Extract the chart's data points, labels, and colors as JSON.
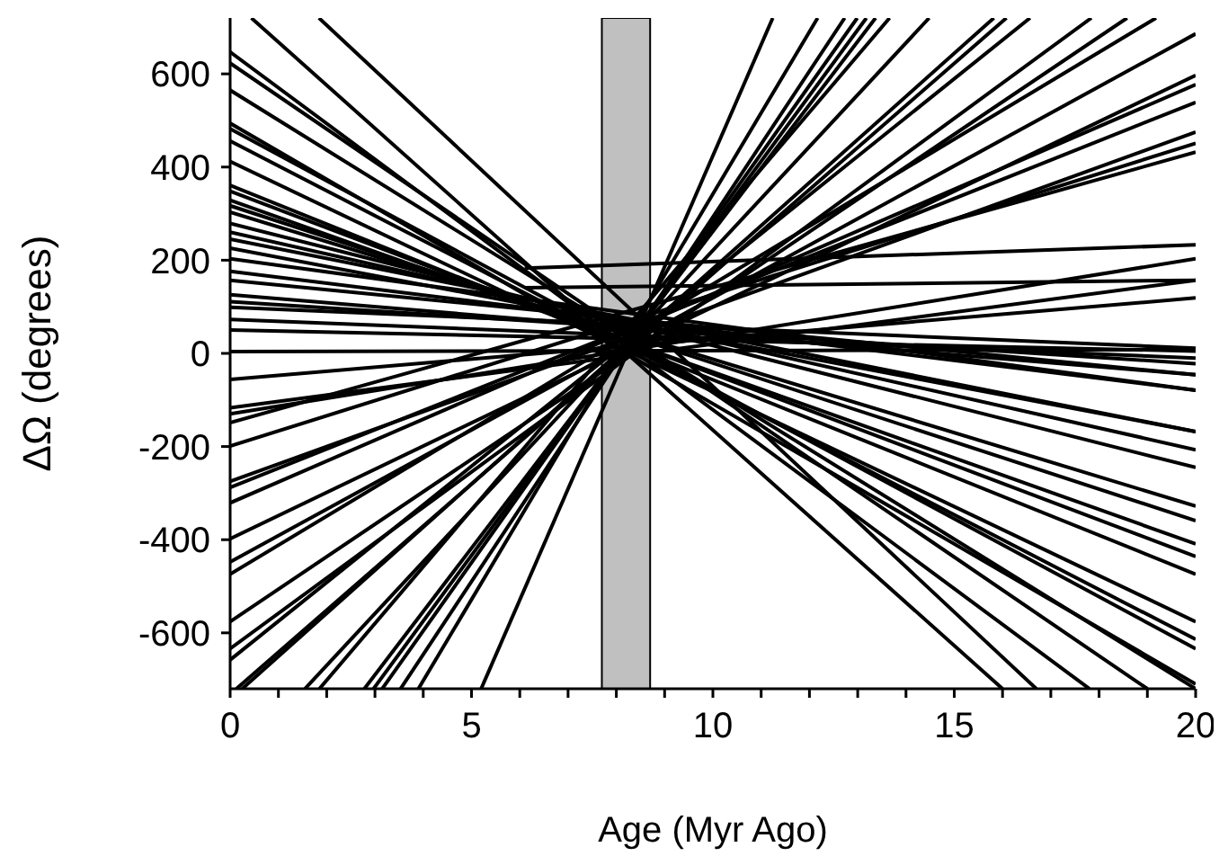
{
  "chart_data": {
    "type": "line",
    "xlabel": "Age (Myr Ago)",
    "ylabel": "ΔΩ (degrees)",
    "xlim": [
      0,
      20
    ],
    "ylim": [
      -720,
      720
    ],
    "xticks": [
      0,
      {
        "value": 1,
        "label": null
      },
      {
        "value": 2,
        "label": null
      },
      {
        "value": 3,
        "label": null
      },
      {
        "value": 4,
        "label": null
      },
      5,
      {
        "value": 6,
        "label": null
      },
      {
        "value": 7,
        "label": null
      },
      {
        "value": 8,
        "label": null
      },
      {
        "value": 9,
        "label": null
      },
      10,
      {
        "value": 11,
        "label": null
      },
      {
        "value": 12,
        "label": null
      },
      {
        "value": 13,
        "label": null
      },
      {
        "value": 14,
        "label": null
      },
      15,
      {
        "value": 16,
        "label": null
      },
      {
        "value": 17,
        "label": null
      },
      {
        "value": 18,
        "label": null
      },
      {
        "value": 19,
        "label": null
      },
      20
    ],
    "yticks": [
      -600,
      -400,
      -200,
      0,
      200,
      400,
      600
    ],
    "grid": false,
    "marker": "none",
    "line_style": "solid",
    "bands": [
      {
        "axis": "x",
        "from": 7.7,
        "to": 8.7,
        "color": "#c0c0c0"
      }
    ],
    "series": [
      {
        "color": "#000000",
        "x": [
          0.44,
          16.0
        ],
        "values": [
          720,
          -720
        ]
      },
      {
        "color": "#000000",
        "x": [
          1.84,
          16.7
        ],
        "values": [
          720,
          -720
        ]
      },
      {
        "color": "#000000",
        "x": [
          0,
          17.8
        ],
        "values": [
          647,
          -720
        ]
      },
      {
        "color": "#000000",
        "x": [
          0,
          19.0
        ],
        "values": [
          623,
          -720
        ]
      },
      {
        "color": "#000000",
        "x": [
          0,
          20
        ],
        "values": [
          565,
          -720
        ]
      },
      {
        "color": "#000000",
        "x": [
          0,
          20
        ],
        "values": [
          494,
          -710
        ]
      },
      {
        "color": "#000000",
        "x": [
          0,
          20
        ],
        "values": [
          482,
          -634
        ]
      },
      {
        "color": "#000000",
        "x": [
          0,
          20
        ],
        "values": [
          456,
          -614
        ]
      },
      {
        "color": "#000000",
        "x": [
          0,
          20
        ],
        "values": [
          412,
          -576
        ]
      },
      {
        "color": "#000000",
        "x": [
          0,
          20
        ],
        "values": [
          361,
          -474
        ]
      },
      {
        "color": "#000000",
        "x": [
          0,
          20
        ],
        "values": [
          348,
          -436
        ]
      },
      {
        "color": "#000000",
        "x": [
          0,
          20
        ],
        "values": [
          329,
          -409
        ]
      },
      {
        "color": "#000000",
        "x": [
          0,
          20
        ],
        "values": [
          317,
          -359
        ]
      },
      {
        "color": "#000000",
        "x": [
          0,
          20
        ],
        "values": [
          303,
          -328
        ]
      },
      {
        "color": "#000000",
        "x": [
          0,
          20
        ],
        "values": [
          279,
          -245
        ]
      },
      {
        "color": "#000000",
        "x": [
          0,
          20
        ],
        "values": [
          260,
          -207
        ]
      },
      {
        "color": "#000000",
        "x": [
          0,
          20
        ],
        "values": [
          245,
          -168
        ]
      },
      {
        "color": "#000000",
        "x": [
          0,
          20
        ],
        "values": [
          226,
          -168
        ]
      },
      {
        "color": "#000000",
        "x": [
          0,
          20
        ],
        "values": [
          203,
          -79
        ]
      },
      {
        "color": "#000000",
        "x": [
          0,
          20
        ],
        "values": [
          176,
          -79
        ]
      },
      {
        "color": "#000000",
        "x": [
          0,
          20
        ],
        "values": [
          157,
          -46
        ]
      },
      {
        "color": "#000000",
        "x": [
          0,
          20
        ],
        "values": [
          126,
          -46
        ]
      },
      {
        "color": "#000000",
        "x": [
          0,
          20
        ],
        "values": [
          111,
          -22
        ]
      },
      {
        "color": "#000000",
        "x": [
          0,
          20
        ],
        "values": [
          99,
          11
        ]
      },
      {
        "color": "#000000",
        "x": [
          0,
          20
        ],
        "values": [
          73,
          -10
        ]
      },
      {
        "color": "#000000",
        "x": [
          0,
          20
        ],
        "values": [
          50,
          5
        ]
      },
      {
        "color": "#000000",
        "x": [
          0,
          20
        ],
        "values": [
          4,
          8
        ]
      },
      {
        "color": "#000000",
        "x": [
          6.1,
          20
        ],
        "values": [
          183,
          233
        ]
      },
      {
        "color": "#000000",
        "x": [
          6.1,
          20
        ],
        "values": [
          141,
          157
        ]
      },
      {
        "color": "#000000",
        "x": [
          0,
          20
        ],
        "values": [
          -56,
          119
        ]
      },
      {
        "color": "#000000",
        "x": [
          0,
          20
        ],
        "values": [
          -117,
          157
        ]
      },
      {
        "color": "#000000",
        "x": [
          0,
          20
        ],
        "values": [
          -130,
          203
        ]
      },
      {
        "color": "#000000",
        "x": [
          0,
          20
        ],
        "values": [
          -149,
          432
        ]
      },
      {
        "color": "#000000",
        "x": [
          0,
          20
        ],
        "values": [
          -199,
          451
        ]
      },
      {
        "color": "#000000",
        "x": [
          0,
          20
        ],
        "values": [
          -275,
          475
        ]
      },
      {
        "color": "#000000",
        "x": [
          0,
          20
        ],
        "values": [
          -288,
          539
        ]
      },
      {
        "color": "#000000",
        "x": [
          0,
          20
        ],
        "values": [
          -321,
          577
        ]
      },
      {
        "color": "#000000",
        "x": [
          0,
          20
        ],
        "values": [
          -398,
          597
        ]
      },
      {
        "color": "#000000",
        "x": [
          0,
          20
        ],
        "values": [
          -448,
          686
        ]
      },
      {
        "color": "#000000",
        "x": [
          0,
          19.18
        ],
        "values": [
          -474,
          720
        ]
      },
      {
        "color": "#000000",
        "x": [
          0,
          18.58
        ],
        "values": [
          -576,
          720
        ]
      },
      {
        "color": "#000000",
        "x": [
          0,
          17.84
        ],
        "values": [
          -634,
          720
        ]
      },
      {
        "color": "#000000",
        "x": [
          0,
          16.57
        ],
        "values": [
          -658,
          720
        ]
      },
      {
        "color": "#000000",
        "x": [
          0.13,
          16.08
        ],
        "values": [
          -720,
          720
        ]
      },
      {
        "color": "#000000",
        "x": [
          0.25,
          15.82
        ],
        "values": [
          -720,
          720
        ]
      },
      {
        "color": "#000000",
        "x": [
          1.55,
          14.48
        ],
        "values": [
          -720,
          720
        ]
      },
      {
        "color": "#000000",
        "x": [
          1.85,
          13.66
        ],
        "values": [
          -720,
          720
        ]
      },
      {
        "color": "#000000",
        "x": [
          2.78,
          13.37
        ],
        "values": [
          -720,
          720
        ]
      },
      {
        "color": "#000000",
        "x": [
          2.97,
          13.18
        ],
        "values": [
          -720,
          720
        ]
      },
      {
        "color": "#000000",
        "x": [
          3.15,
          12.99
        ],
        "values": [
          -720,
          720
        ]
      },
      {
        "color": "#000000",
        "x": [
          3.53,
          12.73
        ],
        "values": [
          -720,
          720
        ]
      },
      {
        "color": "#000000",
        "x": [
          3.9,
          12.17
        ],
        "values": [
          -720,
          720
        ]
      },
      {
        "color": "#000000",
        "x": [
          5.2,
          11.24
        ],
        "values": [
          -720,
          720
        ]
      }
    ]
  }
}
